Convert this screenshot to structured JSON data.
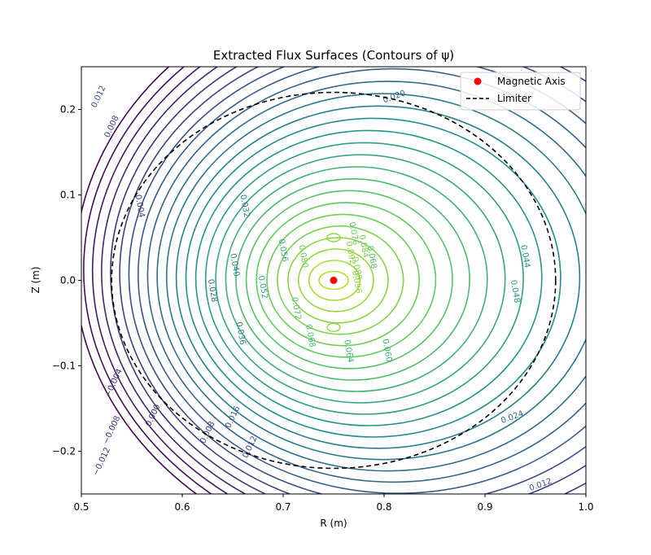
{
  "chart_data": {
    "type": "contour",
    "title": "Extracted Flux Surfaces (Contours of ψ)",
    "xlabel": "R (m)",
    "ylabel": "Z (m)",
    "xlim": [
      0.5,
      1.0
    ],
    "ylim": [
      -0.25,
      0.25
    ],
    "xticks": [
      0.5,
      0.6,
      0.7,
      0.8,
      0.9,
      1.0
    ],
    "xtick_labels": [
      "0.5",
      "0.6",
      "0.7",
      "0.8",
      "0.9",
      "1.0"
    ],
    "yticks": [
      -0.2,
      -0.1,
      0.0,
      0.1,
      0.2
    ],
    "ytick_labels": [
      "−0.2",
      "−0.1",
      "0.0",
      "0.1",
      "0.2"
    ],
    "grid": false,
    "legend_position": "top-right",
    "magnetic_axis": {
      "label": "Magnetic Axis",
      "R": 0.75,
      "Z": 0.0,
      "color": "#ff0000"
    },
    "limiter": {
      "label": "Limiter",
      "R0": 0.75,
      "a": 0.22,
      "b": 0.22,
      "style": "dashed",
      "color": "#000000"
    },
    "contour_labels": [
      {
        "text": "0.020",
        "R": 0.81,
        "Z": 0.215
      },
      {
        "text": "0.012",
        "R": 0.517,
        "Z": 0.215
      },
      {
        "text": "0.008",
        "R": 0.53,
        "Z": 0.18
      },
      {
        "text": "0.004",
        "R": 0.558,
        "Z": 0.087
      },
      {
        "text": "0.032",
        "R": 0.662,
        "Z": 0.087
      },
      {
        "text": "0.056",
        "R": 0.7,
        "Z": 0.035
      },
      {
        "text": "0.040",
        "R": 0.652,
        "Z": 0.018
      },
      {
        "text": "0.028",
        "R": 0.63,
        "Z": -0.012
      },
      {
        "text": "0.052",
        "R": 0.68,
        "Z": -0.008
      },
      {
        "text": "0.080",
        "R": 0.72,
        "Z": 0.028
      },
      {
        "text": "0.076",
        "R": 0.77,
        "Z": 0.055
      },
      {
        "text": "0.084",
        "R": 0.78,
        "Z": 0.04
      },
      {
        "text": "0.068",
        "R": 0.788,
        "Z": 0.027
      },
      {
        "text": "0.092",
        "R": 0.767,
        "Z": 0.032
      },
      {
        "text": "0.088",
        "R": 0.773,
        "Z": 0.014
      },
      {
        "text": "0.096",
        "R": 0.773,
        "Z": -0.002
      },
      {
        "text": "0.072",
        "R": 0.713,
        "Z": -0.033
      },
      {
        "text": "0.068",
        "R": 0.727,
        "Z": -0.065
      },
      {
        "text": "0.036",
        "R": 0.658,
        "Z": -0.062
      },
      {
        "text": "0.064",
        "R": 0.765,
        "Z": -0.083
      },
      {
        "text": "0.060",
        "R": 0.803,
        "Z": -0.082
      },
      {
        "text": "0.044",
        "R": 0.94,
        "Z": 0.028
      },
      {
        "text": "0.048",
        "R": 0.93,
        "Z": -0.013
      },
      {
        "text": "0.024",
        "R": 0.927,
        "Z": -0.16
      },
      {
        "text": "0.016",
        "R": 0.65,
        "Z": -0.16
      },
      {
        "text": "0.012",
        "R": 0.667,
        "Z": -0.195
      },
      {
        "text": "0.008",
        "R": 0.625,
        "Z": -0.178
      },
      {
        "text": "0.000",
        "R": 0.571,
        "Z": -0.158
      },
      {
        "text": "−0.004",
        "R": 0.532,
        "Z": -0.12
      },
      {
        "text": "−0.008",
        "R": 0.53,
        "Z": -0.175
      },
      {
        "text": "−0.012",
        "R": 0.52,
        "Z": -0.212
      },
      {
        "text": "0.012",
        "R": 0.955,
        "Z": -0.239
      }
    ]
  }
}
